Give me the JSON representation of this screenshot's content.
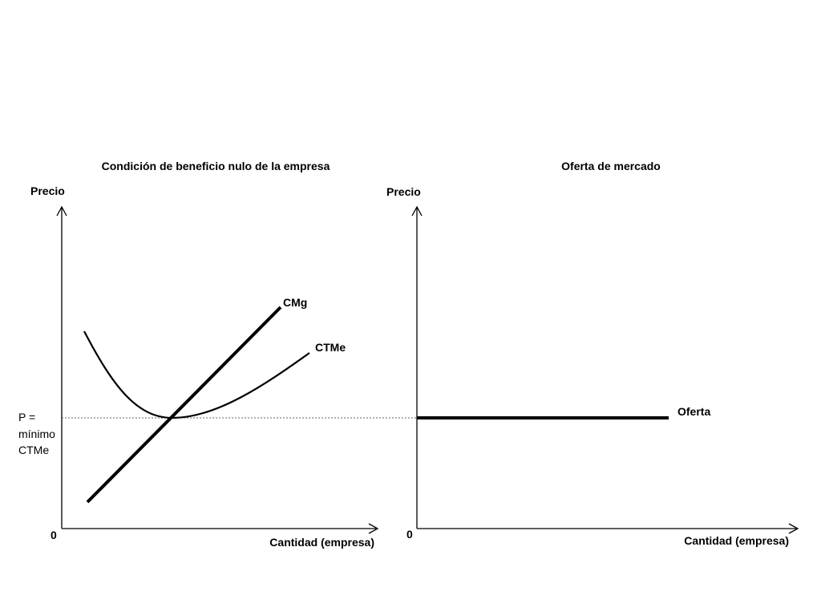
{
  "left_panel": {
    "title": "Condición de beneficio nulo de la empresa",
    "y_axis_label": "Precio",
    "x_axis_label": "Cantidad (empresa)",
    "origin_label": "0",
    "curves": {
      "mc_label": "CMg",
      "atc_label": "CTMe"
    },
    "price_annotation": [
      "P =",
      "mínimo",
      "CTMe"
    ]
  },
  "right_panel": {
    "title": "Oferta de mercado",
    "y_axis_label": "Precio",
    "x_axis_label": "Cantidad (empresa)",
    "origin_label": "0",
    "supply_label": "Oferta"
  }
}
